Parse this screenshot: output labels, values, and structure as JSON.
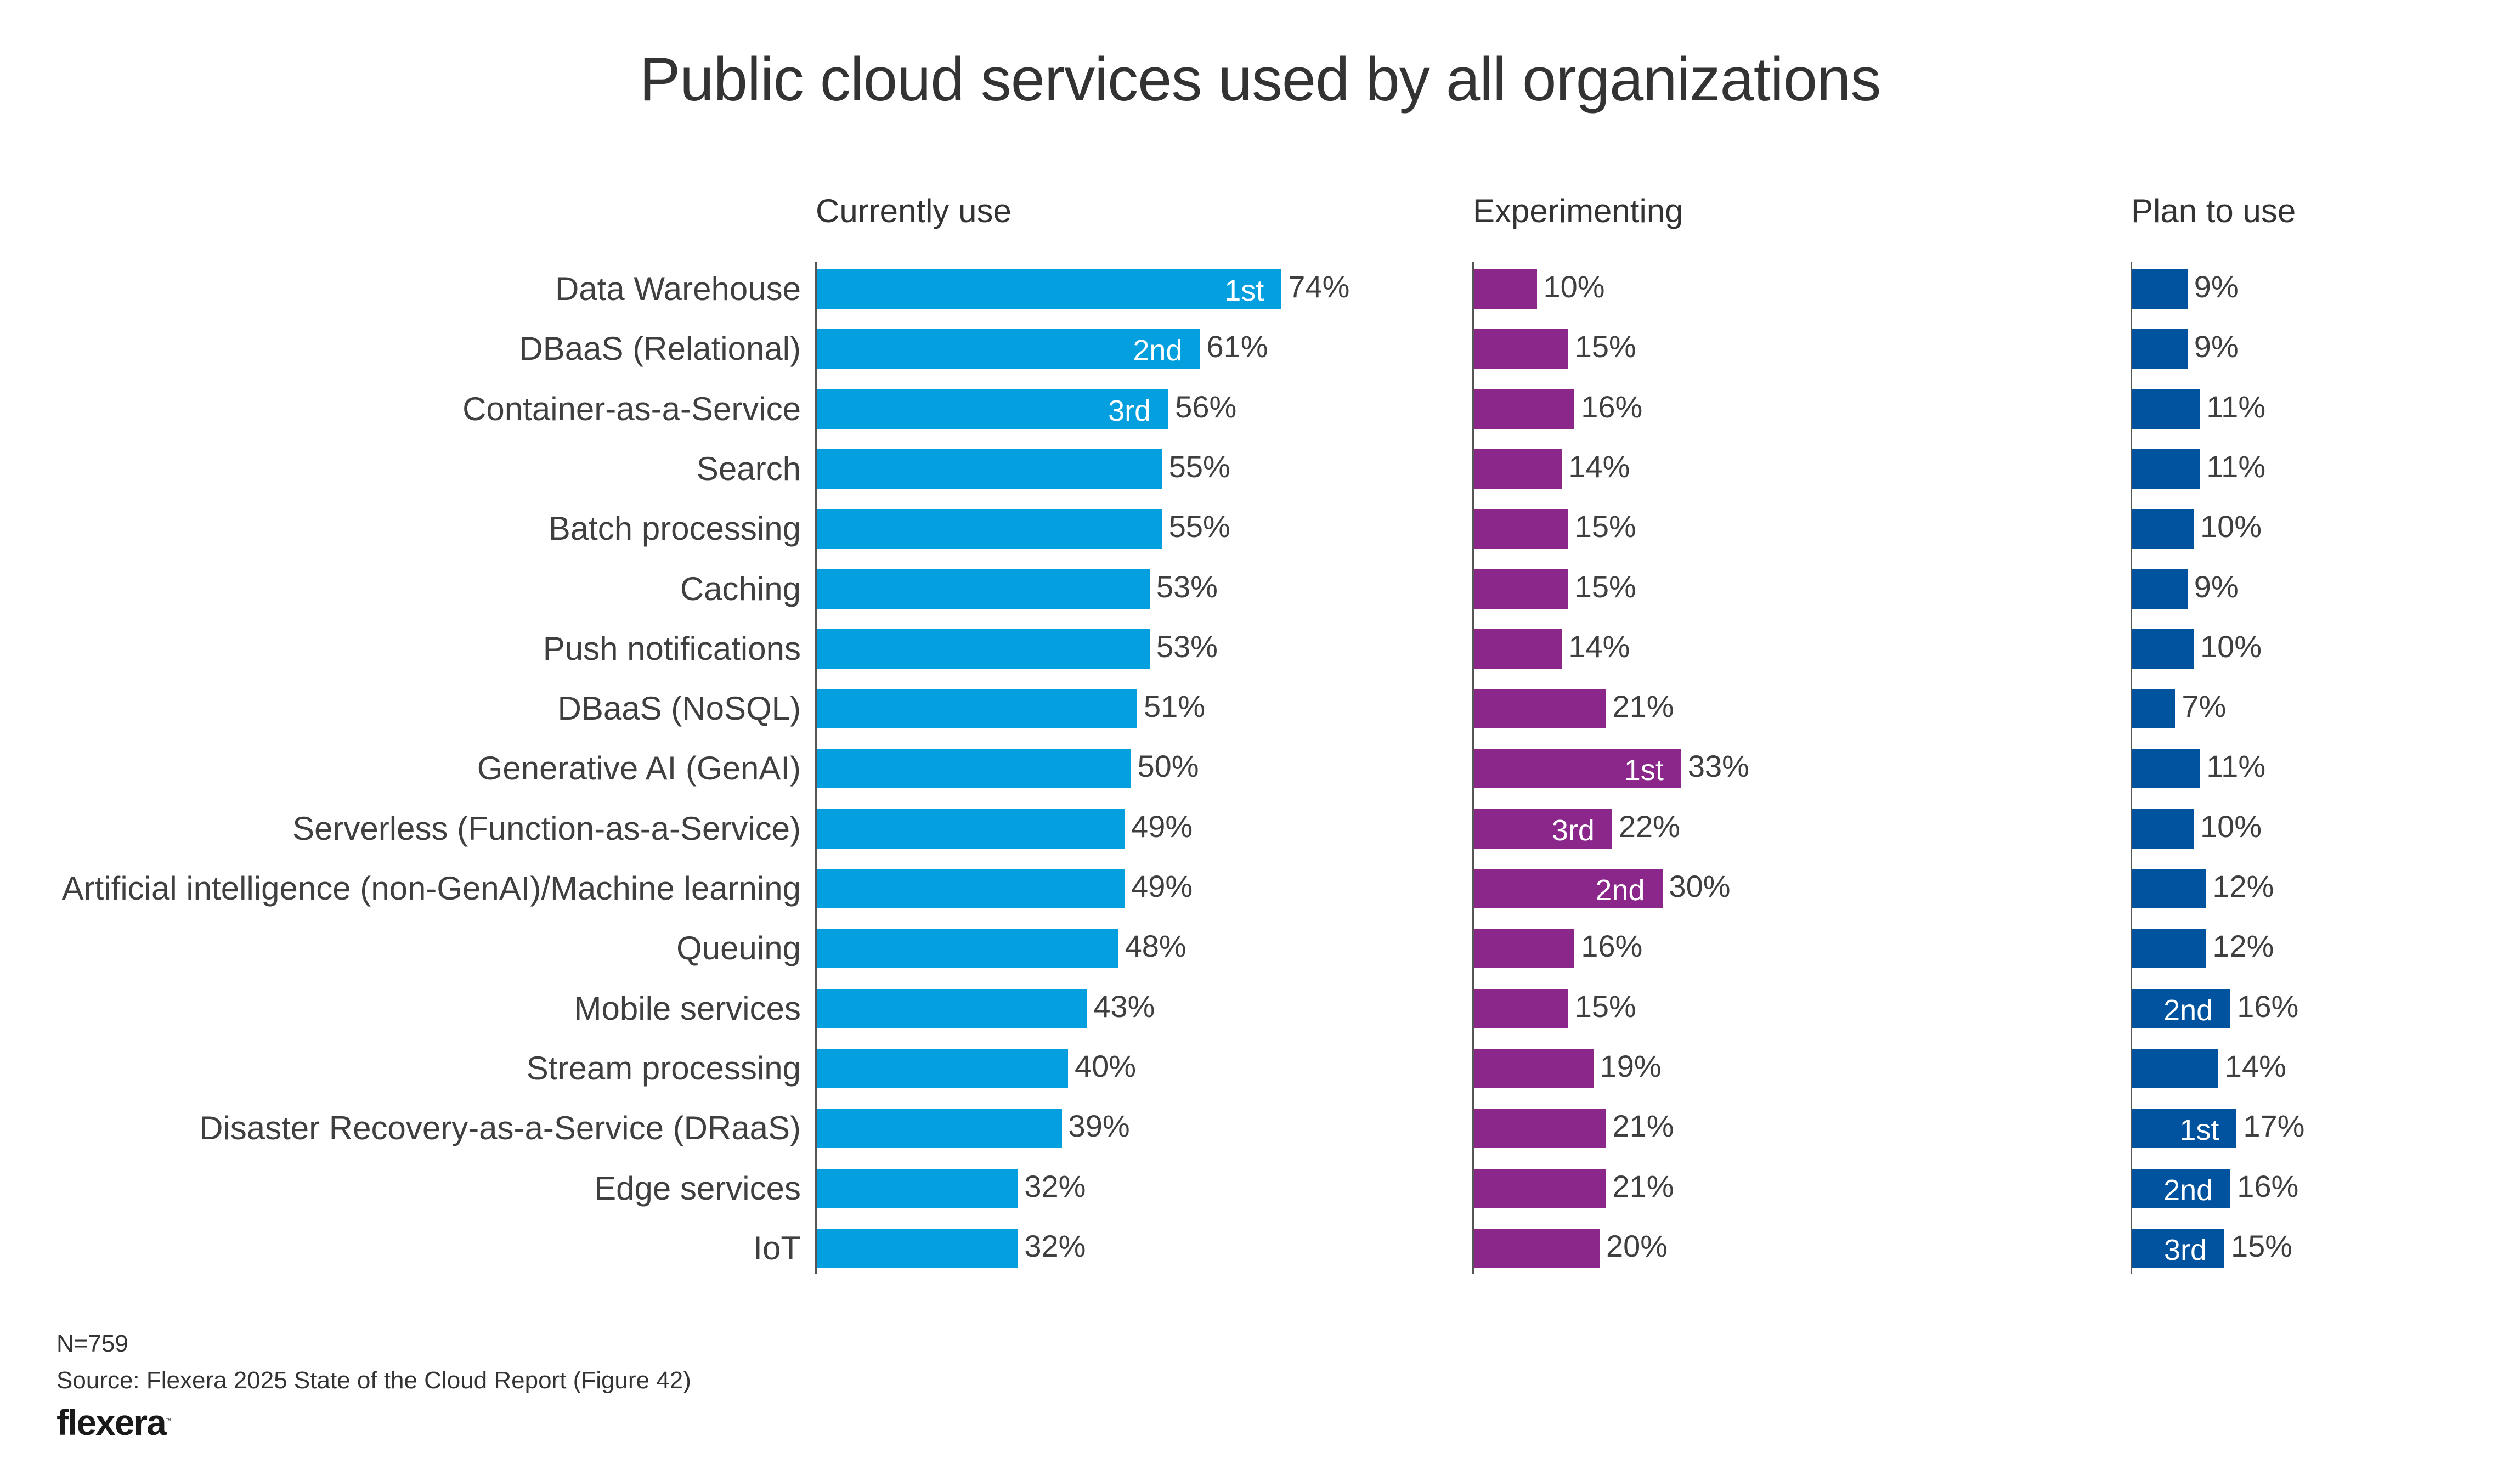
{
  "chart_data": {
    "type": "bar",
    "orientation": "horizontal",
    "title": "Public cloud services used by all organizations",
    "categories": [
      "Data Warehouse",
      "DBaaS (Relational)",
      "Container-as-a-Service",
      "Search",
      "Batch processing",
      "Caching",
      "Push notifications",
      "DBaaS (NoSQL)",
      "Generative AI (GenAI)",
      "Serverless (Function-as-a-Service)",
      "Artificial intelligence (non-GenAI)/Machine learning",
      "Queuing",
      "Mobile services",
      "Stream processing",
      "Disaster Recovery-as-a-Service (DRaaS)",
      "Edge services",
      "IoT"
    ],
    "series": [
      {
        "name": "Currently use",
        "color": "#039fdf",
        "values": [
          74,
          61,
          56,
          55,
          55,
          53,
          53,
          51,
          50,
          49,
          49,
          48,
          43,
          40,
          39,
          32,
          32
        ],
        "ranks": [
          "1st",
          "2nd",
          "3rd",
          "",
          "",
          "",
          "",
          "",
          "",
          "",
          "",
          "",
          "",
          "",
          "",
          "",
          ""
        ]
      },
      {
        "name": "Experimenting",
        "color": "#8b268b",
        "values": [
          10,
          15,
          16,
          14,
          15,
          15,
          14,
          21,
          33,
          22,
          30,
          16,
          15,
          19,
          21,
          21,
          20
        ],
        "ranks": [
          "",
          "",
          "",
          "",
          "",
          "",
          "",
          "",
          "1st",
          "3rd",
          "2nd",
          "",
          "",
          "",
          "",
          "",
          ""
        ]
      },
      {
        "name": "Plan to use",
        "color": "#02539f",
        "values": [
          9,
          9,
          11,
          11,
          10,
          9,
          10,
          7,
          11,
          10,
          12,
          12,
          16,
          14,
          17,
          16,
          15
        ],
        "ranks": [
          "",
          "",
          "",
          "",
          "",
          "",
          "",
          "",
          "",
          "",
          "",
          "",
          "2nd",
          "",
          "1st",
          "2nd",
          "3rd"
        ]
      }
    ],
    "value_suffix": "%",
    "xlabel": "",
    "ylabel": "",
    "xlim": [
      0,
      100
    ],
    "grid": false,
    "legend": "column headers at top"
  },
  "footer": {
    "n": "N=759",
    "source": "Source: Flexera 2025 State of the Cloud Report (Figure 42)",
    "logo_text": "flexera",
    "logo_mark": "™"
  }
}
